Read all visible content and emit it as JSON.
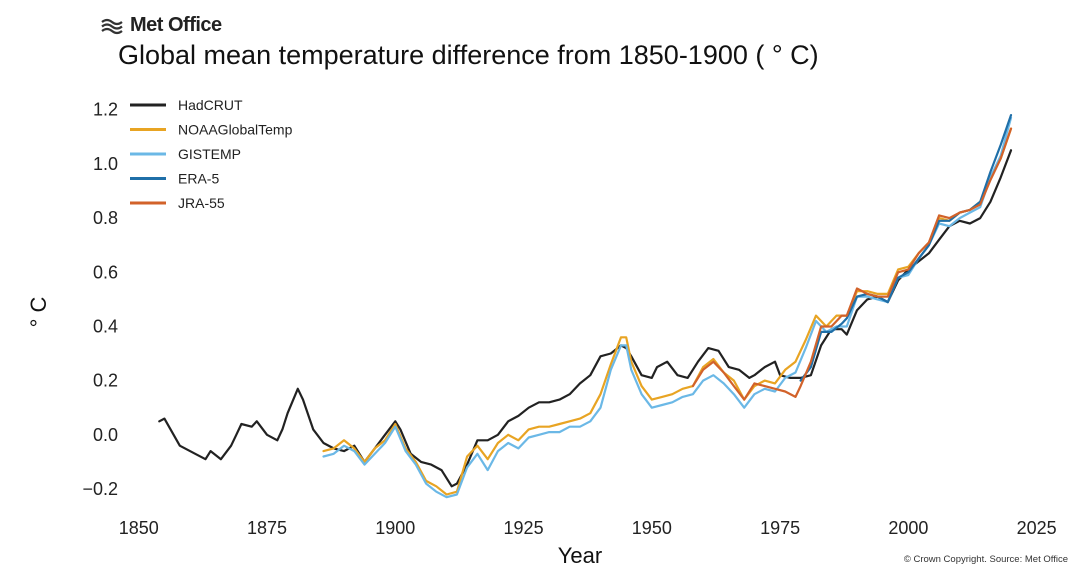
{
  "brand": {
    "name": "Met Office",
    "logo_icon": "met-office-wave-icon"
  },
  "copyright": "© Crown Copyright. Source: Met Office",
  "chart_data": {
    "type": "line",
    "title": "Global mean temperature difference from 1850-1900 ( ° C)",
    "xlabel": "Year",
    "ylabel": "° C",
    "xlim": [
      1844,
      2028
    ],
    "ylim": [
      -0.27,
      1.28
    ],
    "xticks": [
      1850,
      1875,
      1900,
      1925,
      1950,
      1975,
      2000,
      2025
    ],
    "xtick_labels": [
      "1850",
      "1875",
      "1900",
      "1925",
      "1950",
      "1975",
      "2000",
      "2025"
    ],
    "yticks": [
      -0.2,
      0.0,
      0.2,
      0.4,
      0.6,
      0.8,
      1.0,
      1.2
    ],
    "ytick_labels": [
      "−0.2",
      "0.0",
      "0.2",
      "0.4",
      "0.6",
      "0.8",
      "1.0",
      "1.2"
    ],
    "grid": false,
    "legend_position": "top-left",
    "series": [
      {
        "name": "HadCRUT",
        "color": "#222222",
        "x": [
          1854,
          1855,
          1858,
          1861,
          1863,
          1864,
          1866,
          1868,
          1869,
          1870,
          1872,
          1873,
          1875,
          1877,
          1878,
          1879,
          1881,
          1882,
          1884,
          1886,
          1888,
          1890,
          1892,
          1894,
          1896,
          1898,
          1900,
          1901,
          1903,
          1905,
          1907,
          1909,
          1911,
          1912,
          1914,
          1916,
          1918,
          1920,
          1922,
          1924,
          1926,
          1928,
          1930,
          1932,
          1934,
          1936,
          1938,
          1940,
          1942,
          1944,
          1945,
          1946,
          1948,
          1950,
          1951,
          1953,
          1955,
          1957,
          1959,
          1961,
          1963,
          1965,
          1967,
          1969,
          1970,
          1972,
          1974,
          1975,
          1977,
          1979,
          1981,
          1983,
          1985,
          1987,
          1988,
          1990,
          1992,
          1994,
          1996,
          1998,
          2000,
          2002,
          2004,
          2006,
          2008,
          2010,
          2012,
          2014,
          2016,
          2018,
          2020
        ],
        "y": [
          0.05,
          0.06,
          -0.04,
          -0.07,
          -0.09,
          -0.06,
          -0.09,
          -0.04,
          0.0,
          0.04,
          0.03,
          0.05,
          0.0,
          -0.02,
          0.02,
          0.08,
          0.17,
          0.13,
          0.02,
          -0.03,
          -0.05,
          -0.06,
          -0.04,
          -0.1,
          -0.05,
          0.0,
          0.05,
          0.02,
          -0.07,
          -0.1,
          -0.11,
          -0.13,
          -0.19,
          -0.18,
          -0.11,
          -0.02,
          -0.02,
          0.0,
          0.05,
          0.07,
          0.1,
          0.12,
          0.12,
          0.13,
          0.15,
          0.19,
          0.22,
          0.29,
          0.3,
          0.33,
          0.32,
          0.29,
          0.22,
          0.21,
          0.25,
          0.27,
          0.22,
          0.21,
          0.27,
          0.32,
          0.31,
          0.25,
          0.24,
          0.21,
          0.22,
          0.25,
          0.27,
          0.22,
          0.21,
          0.21,
          0.22,
          0.33,
          0.39,
          0.39,
          0.37,
          0.46,
          0.5,
          0.51,
          0.49,
          0.57,
          0.61,
          0.64,
          0.67,
          0.72,
          0.77,
          0.79,
          0.78,
          0.8,
          0.86,
          0.95,
          1.05
        ]
      },
      {
        "name": "NOAAGlobalTemp",
        "color": "#e8a423",
        "x": [
          1886,
          1888,
          1890,
          1892,
          1894,
          1896,
          1898,
          1900,
          1902,
          1904,
          1906,
          1908,
          1910,
          1912,
          1914,
          1916,
          1918,
          1920,
          1922,
          1924,
          1926,
          1928,
          1930,
          1932,
          1934,
          1936,
          1938,
          1940,
          1942,
          1944,
          1945,
          1946,
          1948,
          1950,
          1952,
          1954,
          1956,
          1958,
          1960,
          1962,
          1964,
          1966,
          1968,
          1970,
          1972,
          1974,
          1976,
          1978,
          1980,
          1982,
          1984,
          1986,
          1988,
          1990,
          1992,
          1994,
          1996,
          1998,
          2000,
          2002,
          2004,
          2006,
          2008,
          2010,
          2012,
          2014,
          2016,
          2018,
          2020
        ],
        "y": [
          -0.06,
          -0.05,
          -0.02,
          -0.05,
          -0.1,
          -0.05,
          -0.02,
          0.04,
          -0.05,
          -0.1,
          -0.17,
          -0.19,
          -0.22,
          -0.21,
          -0.08,
          -0.04,
          -0.09,
          -0.03,
          0.0,
          -0.02,
          0.02,
          0.03,
          0.03,
          0.04,
          0.05,
          0.06,
          0.08,
          0.15,
          0.26,
          0.36,
          0.36,
          0.27,
          0.18,
          0.13,
          0.14,
          0.15,
          0.17,
          0.18,
          0.25,
          0.28,
          0.23,
          0.2,
          0.13,
          0.18,
          0.2,
          0.19,
          0.24,
          0.27,
          0.35,
          0.44,
          0.4,
          0.44,
          0.44,
          0.53,
          0.53,
          0.52,
          0.52,
          0.61,
          0.62,
          0.67,
          0.71,
          0.8,
          0.79,
          0.82,
          0.83,
          0.86,
          0.95,
          1.02,
          1.13
        ]
      },
      {
        "name": "GISTEMP",
        "color": "#6bb8e6",
        "x": [
          1886,
          1888,
          1890,
          1892,
          1894,
          1896,
          1898,
          1900,
          1902,
          1904,
          1906,
          1908,
          1910,
          1912,
          1914,
          1916,
          1918,
          1920,
          1922,
          1924,
          1926,
          1928,
          1930,
          1932,
          1934,
          1936,
          1938,
          1940,
          1942,
          1944,
          1945,
          1946,
          1948,
          1950,
          1952,
          1954,
          1956,
          1958,
          1960,
          1962,
          1964,
          1966,
          1968,
          1970,
          1972,
          1974,
          1976,
          1978,
          1980,
          1982,
          1984,
          1986,
          1988,
          1990,
          1992,
          1994,
          1996,
          1998,
          2000,
          2002,
          2004,
          2006,
          2008,
          2010,
          2012,
          2014,
          2016,
          2018,
          2020
        ],
        "y": [
          -0.08,
          -0.07,
          -0.04,
          -0.06,
          -0.11,
          -0.07,
          -0.03,
          0.03,
          -0.06,
          -0.11,
          -0.18,
          -0.21,
          -0.23,
          -0.22,
          -0.12,
          -0.07,
          -0.13,
          -0.06,
          -0.03,
          -0.05,
          -0.01,
          0.0,
          0.01,
          0.01,
          0.03,
          0.03,
          0.05,
          0.1,
          0.24,
          0.33,
          0.33,
          0.24,
          0.15,
          0.1,
          0.11,
          0.12,
          0.14,
          0.15,
          0.2,
          0.22,
          0.19,
          0.15,
          0.1,
          0.15,
          0.17,
          0.16,
          0.21,
          0.23,
          0.32,
          0.42,
          0.38,
          0.4,
          0.4,
          0.51,
          0.51,
          0.5,
          0.49,
          0.58,
          0.59,
          0.65,
          0.7,
          0.78,
          0.77,
          0.8,
          0.82,
          0.84,
          0.95,
          1.03,
          1.17
        ]
      },
      {
        "name": "ERA-5",
        "color": "#1f6fa8",
        "x": [
          1979,
          1981,
          1983,
          1985,
          1987,
          1988,
          1990,
          1992,
          1994,
          1996,
          1998,
          2000,
          2002,
          2004,
          2006,
          2008,
          2010,
          2012,
          2014,
          2016,
          2018,
          2020
        ],
        "y": [
          0.2,
          0.25,
          0.38,
          0.38,
          0.41,
          0.43,
          0.51,
          0.52,
          0.51,
          0.49,
          0.58,
          0.6,
          0.65,
          0.7,
          0.79,
          0.79,
          0.82,
          0.83,
          0.86,
          0.97,
          1.07,
          1.18
        ]
      },
      {
        "name": "JRA-55",
        "color": "#d2622a",
        "x": [
          1958,
          1960,
          1962,
          1964,
          1966,
          1968,
          1970,
          1972,
          1974,
          1976,
          1978,
          1979,
          1981,
          1983,
          1985,
          1987,
          1988,
          1990,
          1992,
          1994,
          1996,
          1998,
          2000,
          2002,
          2004,
          2006,
          2008,
          2010,
          2012,
          2014,
          2016,
          2018,
          2020
        ],
        "y": [
          0.18,
          0.24,
          0.27,
          0.23,
          0.18,
          0.13,
          0.19,
          0.18,
          0.17,
          0.16,
          0.14,
          0.18,
          0.27,
          0.4,
          0.4,
          0.44,
          0.44,
          0.54,
          0.52,
          0.51,
          0.51,
          0.6,
          0.61,
          0.67,
          0.71,
          0.81,
          0.8,
          0.82,
          0.83,
          0.85,
          0.94,
          1.02,
          1.13
        ]
      }
    ]
  }
}
